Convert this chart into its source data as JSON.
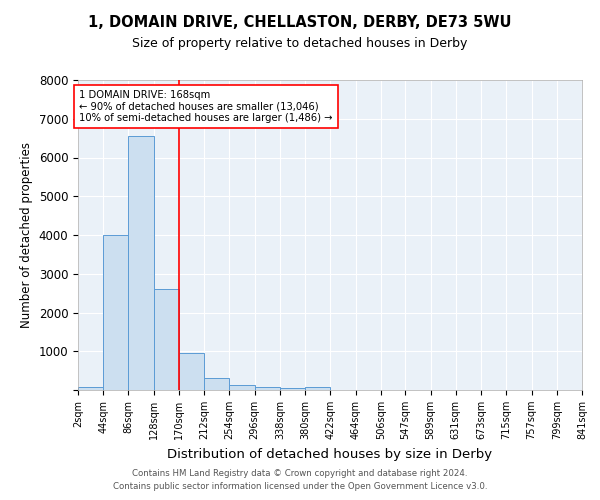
{
  "title1": "1, DOMAIN DRIVE, CHELLASTON, DERBY, DE73 5WU",
  "title2": "Size of property relative to detached houses in Derby",
  "xlabel": "Distribution of detached houses by size in Derby",
  "ylabel": "Number of detached properties",
  "footer1": "Contains HM Land Registry data © Crown copyright and database right 2024.",
  "footer2": "Contains public sector information licensed under the Open Government Licence v3.0.",
  "annotation_line1": "1 DOMAIN DRIVE: 168sqm",
  "annotation_line2": "← 90% of detached houses are smaller (13,046)",
  "annotation_line3": "10% of semi-detached houses are larger (1,486) →",
  "bar_color": "#ccdff0",
  "bar_edge_color": "#5b9bd5",
  "bg_color": "#eaf1f8",
  "grid_color": "#ffffff",
  "red_line_x": 170,
  "bins": [
    2,
    44,
    86,
    128,
    170,
    212,
    254,
    296,
    338,
    380,
    422,
    464,
    506,
    547,
    589,
    631,
    673,
    715,
    757,
    799,
    841
  ],
  "bin_labels": [
    "2sqm",
    "44sqm",
    "86sqm",
    "128sqm",
    "170sqm",
    "212sqm",
    "254sqm",
    "296sqm",
    "338sqm",
    "380sqm",
    "422sqm",
    "464sqm",
    "506sqm",
    "547sqm",
    "589sqm",
    "631sqm",
    "673sqm",
    "715sqm",
    "757sqm",
    "799sqm",
    "841sqm"
  ],
  "counts": [
    75,
    4000,
    6550,
    2600,
    950,
    310,
    130,
    75,
    40,
    70,
    0,
    0,
    0,
    0,
    0,
    0,
    0,
    0,
    0,
    0
  ],
  "ylim": [
    0,
    8000
  ],
  "yticks": [
    0,
    1000,
    2000,
    3000,
    4000,
    5000,
    6000,
    7000,
    8000
  ]
}
